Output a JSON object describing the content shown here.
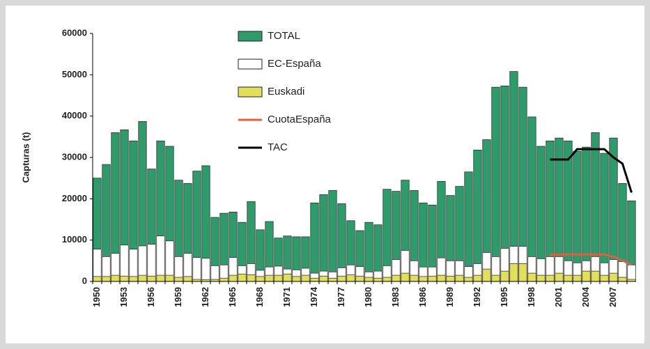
{
  "chart_data": {
    "type": "bar",
    "y_label": "Capturas (t)",
    "categories": [
      "1950",
      null,
      null,
      "1953",
      null,
      null,
      "1956",
      null,
      null,
      "1959",
      null,
      null,
      "1962",
      null,
      null,
      "1965",
      null,
      null,
      "1968",
      null,
      null,
      "1971",
      null,
      null,
      "1974",
      null,
      null,
      "1977",
      null,
      null,
      "1980",
      null,
      null,
      "1983",
      null,
      null,
      "1986",
      null,
      null,
      "1989",
      null,
      null,
      "1992",
      null,
      null,
      "1995",
      null,
      null,
      "1998",
      null,
      null,
      "2001",
      null,
      null,
      "2004",
      null,
      null,
      "2007",
      null,
      null
    ],
    "series": [
      {
        "name": "TOTAL",
        "kind": "bar",
        "color": "#2e9b6a",
        "values": [
          25000,
          28300,
          36000,
          36700,
          34000,
          38700,
          27200,
          34000,
          32700,
          24500,
          23700,
          26700,
          28000,
          15500,
          16500,
          16800,
          14300,
          19300,
          12500,
          14500,
          10500,
          11000,
          10800,
          10800,
          19000,
          21000,
          22000,
          18800,
          14700,
          12300,
          14300,
          13700,
          22300,
          21800,
          24500,
          22000,
          19000,
          18500,
          24200,
          20800,
          23000,
          26500,
          31800,
          34300,
          47000,
          47300,
          50800,
          47000,
          39800,
          32700,
          34000,
          34700,
          34000,
          31500,
          32500,
          36000,
          31000,
          34700,
          23700,
          19500
        ]
      },
      {
        "name": "EC-España",
        "kind": "bar",
        "color": "#ffffff",
        "values": [
          7800,
          6000,
          6800,
          8800,
          7800,
          8600,
          9000,
          11000,
          9800,
          6000,
          6800,
          5800,
          5600,
          3800,
          4000,
          5800,
          3800,
          4300,
          2700,
          3500,
          3700,
          3000,
          2800,
          3200,
          2000,
          2500,
          2300,
          3300,
          4000,
          3600,
          2300,
          2500,
          3800,
          5300,
          7500,
          5000,
          3500,
          3500,
          5700,
          5000,
          5000,
          3600,
          4300,
          7000,
          6000,
          8000,
          8500,
          8500,
          6000,
          5500,
          6000,
          6000,
          5000,
          4500,
          5000,
          6000,
          4500,
          5300,
          4800,
          4000
        ]
      },
      {
        "name": "Euskadi",
        "kind": "bar",
        "color": "#e2e05a",
        "values": [
          1200,
          1200,
          1500,
          1300,
          1200,
          1500,
          1300,
          1500,
          1500,
          1000,
          1200,
          500,
          400,
          500,
          800,
          1500,
          1800,
          1600,
          1200,
          1500,
          1500,
          1800,
          1200,
          1500,
          800,
          1300,
          800,
          1300,
          1600,
          1300,
          1000,
          800,
          1000,
          1500,
          2000,
          1500,
          1200,
          1300,
          1500,
          1300,
          1500,
          1000,
          1500,
          3000,
          1500,
          2500,
          4300,
          4300,
          2000,
          1500,
          1500,
          2000,
          1500,
          1500,
          2500,
          2500,
          1500,
          2000,
          1000,
          500
        ]
      },
      {
        "name": "CuotaEspaña",
        "kind": "line",
        "color": "#e8603a",
        "values": [
          null,
          null,
          null,
          null,
          null,
          null,
          null,
          null,
          null,
          null,
          null,
          null,
          null,
          null,
          null,
          null,
          null,
          null,
          null,
          null,
          null,
          null,
          null,
          null,
          null,
          null,
          null,
          null,
          null,
          null,
          null,
          null,
          null,
          null,
          null,
          null,
          null,
          null,
          null,
          null,
          null,
          null,
          null,
          null,
          null,
          null,
          null,
          null,
          null,
          null,
          6500,
          6500,
          6500,
          6500,
          6500,
          6500,
          6500,
          6000,
          5000,
          4000
        ]
      },
      {
        "name": "TAC",
        "kind": "line",
        "color": "#000000",
        "values": [
          null,
          null,
          null,
          null,
          null,
          null,
          null,
          null,
          null,
          null,
          null,
          null,
          null,
          null,
          null,
          null,
          null,
          null,
          null,
          null,
          null,
          null,
          null,
          null,
          null,
          null,
          null,
          null,
          null,
          null,
          null,
          null,
          null,
          null,
          null,
          null,
          null,
          null,
          null,
          null,
          null,
          null,
          null,
          null,
          null,
          null,
          null,
          null,
          null,
          null,
          29500,
          29500,
          29500,
          32000,
          32000,
          32000,
          32000,
          30000,
          28500,
          21500
        ]
      }
    ],
    "ylim": [
      0,
      60000
    ],
    "yticks": [
      0,
      10000,
      20000,
      30000,
      40000,
      50000,
      60000
    ]
  }
}
